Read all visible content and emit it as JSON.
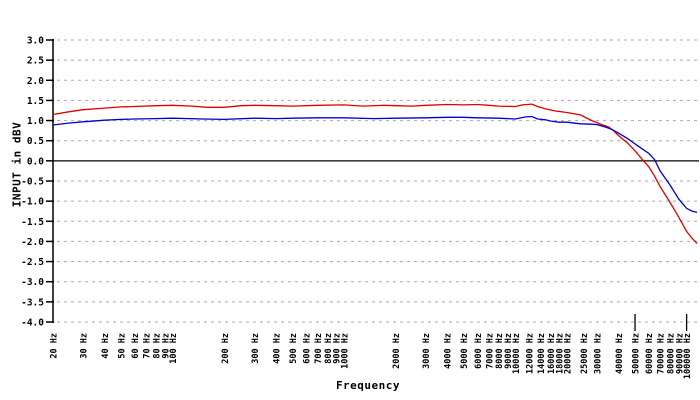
{
  "chart_data": {
    "type": "line",
    "title": "",
    "xlabel": "Frequency",
    "ylabel": "INPUT in dBV",
    "x_scale": "log",
    "xlim": [
      20,
      115000
    ],
    "ylim": [
      -4.0,
      3.0
    ],
    "y_tick_step": 0.5,
    "y_tick_labels": [
      "3.0",
      "2.5",
      "2.0",
      "1.5",
      "1.0",
      "0.5",
      "0.0",
      "-0.5",
      "-1.0",
      "-1.5",
      "-2.0",
      "-2.5",
      "-3.0",
      "-3.5",
      "-4.0"
    ],
    "x_tick_suffix": " Hz",
    "x_ticks": [
      20,
      30,
      40,
      50,
      60,
      70,
      80,
      90,
      100,
      200,
      300,
      400,
      500,
      600,
      700,
      800,
      900,
      1000,
      2000,
      3000,
      4000,
      5000,
      6000,
      7000,
      8000,
      9000,
      10000,
      12000,
      14000,
      16000,
      18000,
      20000,
      25000,
      30000,
      40000,
      50000,
      60000,
      70000,
      80000,
      90000,
      100000
    ],
    "bottom_marker_ticks": [
      50000,
      100000
    ],
    "grid": "horizontal-dashed",
    "legend": "none",
    "zero_line": true,
    "colors": {
      "background": "#ffffff",
      "grid": "#a8a8a8",
      "axis": "#000000",
      "zero_line": "#000000",
      "text": "#000000",
      "red_trace": "#dd0000",
      "blue_trace": "#0000cc"
    },
    "series": [
      {
        "name": "red-trace",
        "color": "#dd0000",
        "points": [
          [
            20,
            1.15
          ],
          [
            25,
            1.22
          ],
          [
            30,
            1.27
          ],
          [
            40,
            1.31
          ],
          [
            50,
            1.34
          ],
          [
            60,
            1.35
          ],
          [
            80,
            1.37
          ],
          [
            100,
            1.38
          ],
          [
            130,
            1.36
          ],
          [
            160,
            1.33
          ],
          [
            200,
            1.33
          ],
          [
            250,
            1.37
          ],
          [
            300,
            1.38
          ],
          [
            400,
            1.37
          ],
          [
            500,
            1.36
          ],
          [
            700,
            1.38
          ],
          [
            1000,
            1.39
          ],
          [
            1300,
            1.36
          ],
          [
            1700,
            1.38
          ],
          [
            2000,
            1.37
          ],
          [
            2500,
            1.36
          ],
          [
            3000,
            1.38
          ],
          [
            4000,
            1.4
          ],
          [
            5000,
            1.39
          ],
          [
            6000,
            1.4
          ],
          [
            7000,
            1.38
          ],
          [
            8000,
            1.36
          ],
          [
            10000,
            1.35
          ],
          [
            11000,
            1.39
          ],
          [
            12500,
            1.41
          ],
          [
            13500,
            1.35
          ],
          [
            15000,
            1.29
          ],
          [
            17000,
            1.24
          ],
          [
            20000,
            1.2
          ],
          [
            24000,
            1.14
          ],
          [
            28000,
            1.0
          ],
          [
            32000,
            0.9
          ],
          [
            35000,
            0.84
          ],
          [
            37000,
            0.77
          ],
          [
            40000,
            0.63
          ],
          [
            45000,
            0.45
          ],
          [
            50000,
            0.25
          ],
          [
            56000,
            0.0
          ],
          [
            60000,
            -0.14
          ],
          [
            65000,
            -0.38
          ],
          [
            70000,
            -0.64
          ],
          [
            80000,
            -1.03
          ],
          [
            90000,
            -1.4
          ],
          [
            100000,
            -1.75
          ],
          [
            108000,
            -1.93
          ],
          [
            115000,
            -2.05
          ]
        ]
      },
      {
        "name": "blue-trace",
        "color": "#0000cc",
        "points": [
          [
            20,
            0.89
          ],
          [
            25,
            0.94
          ],
          [
            30,
            0.97
          ],
          [
            40,
            1.01
          ],
          [
            50,
            1.03
          ],
          [
            60,
            1.04
          ],
          [
            80,
            1.05
          ],
          [
            100,
            1.06
          ],
          [
            150,
            1.04
          ],
          [
            200,
            1.03
          ],
          [
            300,
            1.06
          ],
          [
            400,
            1.05
          ],
          [
            500,
            1.06
          ],
          [
            700,
            1.07
          ],
          [
            1000,
            1.07
          ],
          [
            1500,
            1.05
          ],
          [
            2000,
            1.06
          ],
          [
            3000,
            1.07
          ],
          [
            4000,
            1.08
          ],
          [
            5000,
            1.08
          ],
          [
            6000,
            1.07
          ],
          [
            8000,
            1.06
          ],
          [
            10000,
            1.04
          ],
          [
            11500,
            1.09
          ],
          [
            12500,
            1.1
          ],
          [
            13500,
            1.04
          ],
          [
            15000,
            1.02
          ],
          [
            16000,
            0.99
          ],
          [
            18000,
            0.96
          ],
          [
            20000,
            0.96
          ],
          [
            24000,
            0.92
          ],
          [
            28000,
            0.91
          ],
          [
            30000,
            0.9
          ],
          [
            33000,
            0.85
          ],
          [
            35000,
            0.81
          ],
          [
            37000,
            0.77
          ],
          [
            40000,
            0.69
          ],
          [
            45000,
            0.56
          ],
          [
            50000,
            0.42
          ],
          [
            55000,
            0.3
          ],
          [
            60000,
            0.19
          ],
          [
            65000,
            0.03
          ],
          [
            70000,
            -0.25
          ],
          [
            80000,
            -0.6
          ],
          [
            90000,
            -0.95
          ],
          [
            100000,
            -1.18
          ],
          [
            108000,
            -1.25
          ],
          [
            115000,
            -1.28
          ]
        ]
      }
    ]
  }
}
